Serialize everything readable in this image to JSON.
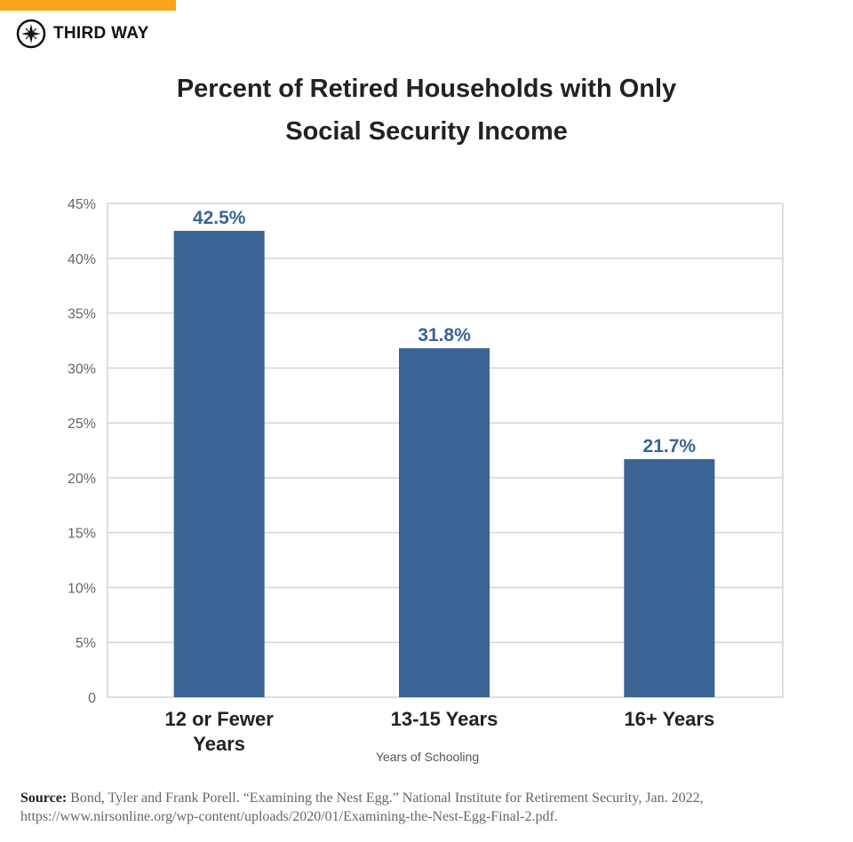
{
  "brand": {
    "name": "THIRD WAY",
    "accent_color": "#f9a31e"
  },
  "chart_data": {
    "type": "bar",
    "title": "Percent of Retired Households with Only Social Security Income",
    "title_lines": [
      "Percent of Retired Households with Only",
      "Social Security Income"
    ],
    "categories": [
      [
        "12 or Fewer",
        "Years"
      ],
      [
        "13-15 Years"
      ],
      [
        "16+ Years"
      ]
    ],
    "values": [
      42.5,
      31.8,
      21.7
    ],
    "data_labels": [
      "42.5%",
      "31.8%",
      "21.7%"
    ],
    "xlabel": "Years of Schooling",
    "ylabel": "",
    "ylim": [
      0,
      45
    ],
    "yticks": [
      0,
      5,
      10,
      15,
      20,
      25,
      30,
      35,
      40,
      45
    ],
    "ytick_labels": [
      "0",
      "5%",
      "10%",
      "15%",
      "20%",
      "25%",
      "30%",
      "35%",
      "40%",
      "45%"
    ],
    "grid": true,
    "bar_color": "#3b6494"
  },
  "source": {
    "label": "Source:",
    "text": "Bond, Tyler and Frank Porell. “Examining the Nest Egg.” National Institute for Retirement Security, Jan. 2022, https://www.nirsonline.org/wp-content/uploads/2020/01/Examining-the-Nest-Egg-Final-2.pdf."
  }
}
